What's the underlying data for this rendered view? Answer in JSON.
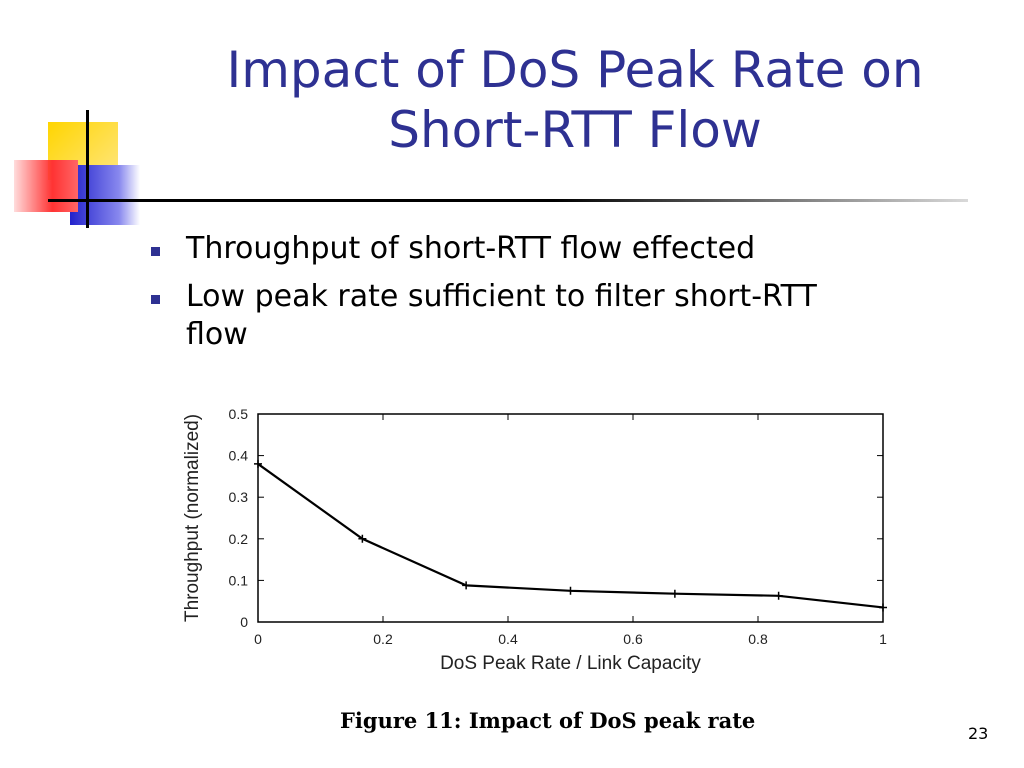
{
  "slide": {
    "title_lines": [
      "Impact of DoS Peak Rate on",
      "Short-RTT Flow"
    ],
    "bullets": [
      "Throughput of short-RTT flow effected",
      "Low peak rate sufficient to filter short-RTT flow"
    ],
    "caption": "Figure 11: Impact of DoS peak rate",
    "page_number": "23",
    "colors": {
      "title": "#2e3192",
      "bullet": "#2e3192",
      "deco_yellow": "#ffd500",
      "deco_blue": "#3333cc",
      "deco_red": "#ff3333"
    }
  },
  "chart_data": {
    "type": "line",
    "xlabel": "DoS Peak Rate / Link Capacity",
    "ylabel": "Throughput (normalized)",
    "xlim": [
      0,
      1
    ],
    "ylim": [
      0,
      0.5
    ],
    "xticks": [
      0,
      0.2,
      0.4,
      0.6,
      0.8,
      1
    ],
    "xtick_labels": [
      "0",
      "0.2",
      "0.4",
      "0.6",
      "0.8",
      "1"
    ],
    "yticks": [
      0,
      0.1,
      0.2,
      0.3,
      0.4,
      0.5
    ],
    "ytick_labels": [
      "0",
      "0.1",
      "0.2",
      "0.3",
      "0.4",
      "0.5"
    ],
    "grid": false,
    "series": [
      {
        "x": [
          0,
          0.167,
          0.333,
          0.5,
          0.667,
          0.833,
          1
        ],
        "y": [
          0.38,
          0.2,
          0.088,
          0.075,
          0.068,
          0.063,
          0.035
        ]
      }
    ]
  }
}
